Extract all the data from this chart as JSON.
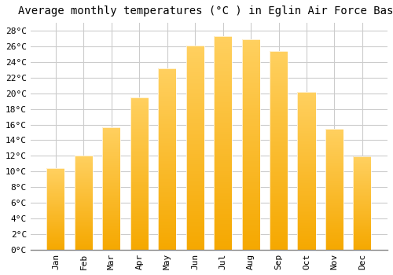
{
  "title": "Average monthly temperatures (°C ) in Eglin Air Force Base",
  "months": [
    "Jan",
    "Feb",
    "Mar",
    "Apr",
    "May",
    "Jun",
    "Jul",
    "Aug",
    "Sep",
    "Oct",
    "Nov",
    "Dec"
  ],
  "values": [
    10.4,
    12.0,
    15.7,
    19.5,
    23.2,
    26.1,
    27.3,
    26.9,
    25.4,
    20.2,
    15.5,
    11.9
  ],
  "bar_color_bottom": "#F5A800",
  "bar_color_top": "#FFD060",
  "background_color": "#FFFFFF",
  "grid_color": "#CCCCCC",
  "ylim": [
    0,
    29
  ],
  "ytick_step": 2,
  "title_fontsize": 10,
  "tick_fontsize": 8,
  "font_family": "monospace"
}
